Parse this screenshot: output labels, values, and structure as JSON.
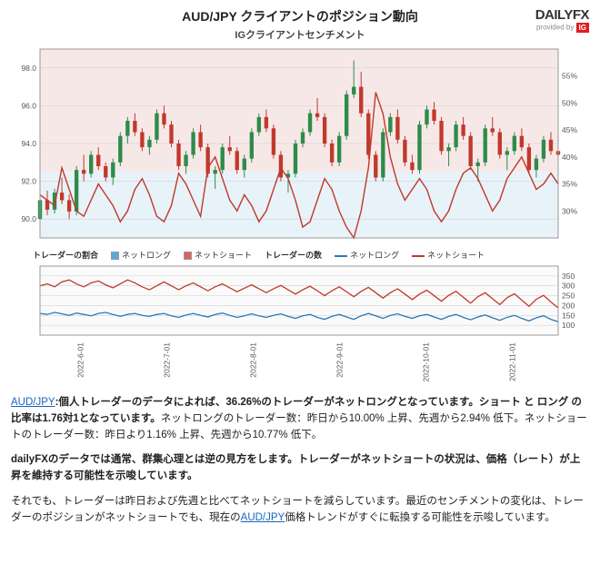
{
  "header": {
    "title": "AUD/JPY クライアントのポジション動向",
    "subtitle": "IGクライアントセンチメント",
    "logo_main": "DAILYFX",
    "logo_sub": "provided by",
    "logo_brand": "IG"
  },
  "main_chart": {
    "type": "candlestick_with_line",
    "plot_bg": "#f7e8e8",
    "plot_bg_lower": "#e8f2f9",
    "y_left": {
      "min": 89,
      "max": 99,
      "ticks": [
        90,
        92,
        94,
        96,
        98
      ]
    },
    "y_right": {
      "min": 25,
      "max": 60,
      "ticks": [
        30,
        35,
        40,
        45,
        50,
        55
      ],
      "suffix": "%"
    },
    "x_labels": [
      "2022-6-01",
      "2022-7-01",
      "2022-8-01",
      "2022-9-01",
      "2022-10-01",
      "2022-11-01"
    ],
    "candle_up_color": "#2e8b4a",
    "candle_down_color": "#c0392b",
    "shade_split_y": 92.5,
    "candles": [
      [
        90.0,
        91.2,
        89.4,
        91.0
      ],
      [
        91.0,
        91.5,
        90.2,
        90.5
      ],
      [
        90.5,
        91.6,
        90.3,
        91.4
      ],
      [
        91.4,
        92.2,
        90.8,
        91.0
      ],
      [
        91.0,
        91.3,
        90.0,
        90.4
      ],
      [
        90.4,
        92.8,
        90.2,
        92.6
      ],
      [
        92.6,
        93.4,
        92.0,
        92.4
      ],
      [
        92.4,
        93.6,
        92.2,
        93.4
      ],
      [
        93.4,
        93.8,
        92.6,
        92.8
      ],
      [
        92.8,
        93.0,
        92.0,
        92.2
      ],
      [
        92.2,
        93.2,
        91.8,
        93.0
      ],
      [
        93.0,
        94.6,
        92.8,
        94.4
      ],
      [
        94.4,
        95.4,
        94.0,
        95.2
      ],
      [
        95.2,
        95.6,
        94.4,
        94.6
      ],
      [
        94.6,
        94.8,
        93.6,
        93.8
      ],
      [
        93.8,
        94.4,
        93.4,
        94.2
      ],
      [
        94.2,
        95.8,
        94.0,
        95.6
      ],
      [
        95.6,
        96.0,
        94.8,
        95.0
      ],
      [
        95.0,
        95.2,
        93.8,
        94.0
      ],
      [
        94.0,
        94.2,
        92.6,
        92.8
      ],
      [
        92.8,
        93.6,
        92.4,
        93.4
      ],
      [
        93.4,
        94.8,
        93.2,
        94.6
      ],
      [
        94.6,
        95.0,
        93.6,
        93.8
      ],
      [
        93.8,
        94.0,
        92.2,
        92.4
      ],
      [
        92.4,
        92.8,
        91.6,
        92.6
      ],
      [
        92.6,
        94.0,
        92.4,
        93.8
      ],
      [
        93.8,
        94.4,
        93.4,
        93.6
      ],
      [
        93.6,
        93.8,
        92.4,
        92.6
      ],
      [
        92.6,
        93.4,
        92.2,
        93.2
      ],
      [
        93.2,
        94.8,
        93.0,
        94.6
      ],
      [
        94.6,
        95.6,
        94.4,
        95.4
      ],
      [
        95.4,
        95.8,
        94.6,
        94.8
      ],
      [
        94.8,
        95.0,
        93.2,
        93.4
      ],
      [
        93.4,
        93.6,
        92.0,
        92.2
      ],
      [
        92.2,
        92.6,
        91.4,
        92.4
      ],
      [
        92.4,
        94.2,
        92.2,
        94.0
      ],
      [
        94.0,
        94.8,
        93.8,
        94.6
      ],
      [
        94.6,
        95.8,
        94.4,
        95.6
      ],
      [
        95.6,
        96.4,
        95.2,
        95.4
      ],
      [
        95.4,
        95.6,
        93.8,
        94.0
      ],
      [
        94.0,
        94.2,
        92.8,
        93.0
      ],
      [
        93.0,
        94.6,
        92.8,
        94.4
      ],
      [
        94.4,
        96.8,
        94.2,
        96.6
      ],
      [
        96.6,
        98.4,
        96.4,
        97.0
      ],
      [
        97.0,
        97.8,
        95.4,
        95.6
      ],
      [
        95.6,
        95.8,
        93.2,
        93.4
      ],
      [
        93.4,
        93.6,
        92.0,
        92.2
      ],
      [
        92.2,
        94.8,
        92.0,
        94.6
      ],
      [
        94.6,
        95.6,
        94.4,
        95.4
      ],
      [
        95.4,
        95.8,
        94.0,
        94.2
      ],
      [
        94.2,
        94.4,
        92.8,
        93.0
      ],
      [
        93.0,
        93.4,
        92.4,
        92.6
      ],
      [
        92.6,
        95.2,
        92.4,
        95.0
      ],
      [
        95.0,
        96.0,
        94.8,
        95.8
      ],
      [
        95.8,
        96.2,
        95.0,
        95.2
      ],
      [
        95.2,
        95.4,
        93.4,
        93.6
      ],
      [
        93.6,
        94.0,
        92.8,
        93.8
      ],
      [
        93.8,
        95.2,
        93.6,
        95.0
      ],
      [
        95.0,
        95.4,
        94.2,
        94.4
      ],
      [
        94.4,
        94.6,
        92.6,
        92.8
      ],
      [
        92.8,
        93.2,
        92.0,
        93.0
      ],
      [
        93.0,
        95.0,
        92.8,
        94.8
      ],
      [
        94.8,
        95.4,
        94.4,
        94.6
      ],
      [
        94.6,
        94.8,
        93.2,
        93.4
      ],
      [
        93.4,
        93.8,
        92.6,
        93.6
      ],
      [
        93.6,
        94.6,
        93.4,
        94.4
      ],
      [
        94.4,
        94.8,
        93.6,
        93.8
      ],
      [
        93.8,
        94.0,
        92.4,
        92.6
      ],
      [
        92.6,
        93.4,
        92.2,
        93.2
      ],
      [
        93.2,
        94.4,
        93.0,
        94.2
      ],
      [
        94.2,
        94.6,
        93.4,
        93.6
      ],
      [
        93.6,
        93.8,
        92.8,
        93.4
      ]
    ],
    "sentiment_line_color": "#c0392b",
    "sentiment": [
      33,
      32,
      31,
      38,
      34,
      30,
      29,
      32,
      35,
      33,
      31,
      28,
      30,
      34,
      36,
      33,
      29,
      28,
      31,
      37,
      35,
      32,
      29,
      38,
      40,
      36,
      32,
      30,
      33,
      31,
      28,
      30,
      34,
      38,
      36,
      32,
      27,
      28,
      32,
      36,
      34,
      30,
      27,
      25,
      30,
      38,
      52,
      48,
      40,
      35,
      32,
      34,
      36,
      34,
      30,
      28,
      30,
      34,
      37,
      38,
      36,
      33,
      30,
      32,
      36,
      38,
      40,
      37,
      34,
      35,
      37,
      35
    ]
  },
  "sub_chart": {
    "type": "line",
    "y": {
      "min": 50,
      "max": 400,
      "ticks": [
        100,
        150,
        200,
        250,
        300,
        350
      ]
    },
    "legend": {
      "ratio_label": "トレーダーの割合",
      "long_box": "ネットロング",
      "short_box": "ネットショート",
      "count_label": "トレーダーの数",
      "long_line": "ネットロング",
      "short_line": "ネットショート",
      "long_box_color": "#5aa8e0",
      "short_box_color": "#e06060",
      "long_line_color": "#2a7ab8",
      "short_line_color": "#c0392b"
    },
    "net_long": [
      160,
      155,
      165,
      158,
      150,
      162,
      155,
      148,
      160,
      165,
      155,
      145,
      155,
      160,
      150,
      145,
      155,
      160,
      148,
      140,
      152,
      160,
      150,
      142,
      155,
      162,
      150,
      140,
      148,
      158,
      148,
      140,
      150,
      158,
      145,
      135,
      148,
      155,
      140,
      130,
      145,
      155,
      142,
      130,
      148,
      160,
      148,
      135,
      150,
      158,
      145,
      135,
      148,
      155,
      142,
      130,
      145,
      155,
      140,
      128,
      142,
      152,
      138,
      125,
      140,
      150,
      135,
      122,
      138,
      148,
      130,
      118
    ],
    "net_short": [
      300,
      310,
      295,
      320,
      330,
      310,
      295,
      315,
      325,
      305,
      290,
      310,
      330,
      315,
      295,
      280,
      300,
      320,
      300,
      280,
      300,
      315,
      295,
      275,
      295,
      310,
      290,
      270,
      288,
      305,
      285,
      265,
      285,
      302,
      280,
      258,
      280,
      298,
      275,
      250,
      275,
      295,
      270,
      245,
      272,
      292,
      265,
      238,
      265,
      285,
      258,
      230,
      258,
      278,
      250,
      222,
      252,
      272,
      242,
      212,
      245,
      265,
      235,
      205,
      240,
      260,
      228,
      196,
      232,
      252,
      218,
      188
    ]
  },
  "text": {
    "link1": "AUD/JPY",
    "p1a": ":個人トレーダーのデータによれば、36.26%のトレーダーがネットロングとなっています。ショート と ロング の比率は1.76対1となっています。",
    "p1b": "ネットロングのトレーダー数：昨日から10.00% 上昇、先週から2.94% 低下。ネットショートのトレーダー数：昨日より1.16% 上昇、先週から10.77% 低下。",
    "p2": "dailyFXのデータでは通常、群集心理とは逆の見方をします。トレーダーがネットショートの状況は、価格（レート）が上昇を維持する可能性を示唆しています。",
    "p3a": "それでも、トレーダーは昨日および先週と比べてネットショートを減らしています。最近のセンチメントの変化は、トレーダーのポジションがネットショートでも、現在の",
    "link2": "AUD/JPY",
    "p3b": "価格トレンドがすぐに転換する可能性を示唆しています。"
  }
}
